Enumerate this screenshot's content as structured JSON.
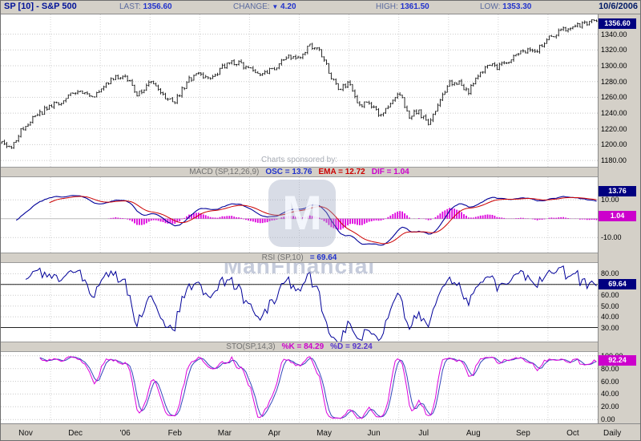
{
  "header": {
    "title": "SP [10] - S&P 500",
    "last_label": "LAST:",
    "last_value": "1356.60",
    "change_label": "CHANGE:",
    "change_value": "4.20",
    "change_direction": "down",
    "high_label": "HIGH:",
    "high_value": "1361.50",
    "low_label": "LOW:",
    "low_value": "1353.30",
    "date": "10/6/2006"
  },
  "icons": {
    "down_triangle": "▼"
  },
  "price": {
    "badge": "1356.60",
    "sponsor_text": "Charts sponsored by:"
  },
  "macd": {
    "name": "MACD (SP,12,26,9)",
    "osc_text": "OSC = 13.76",
    "ema_text": "EMA = 12.72",
    "dif_text": "DIF = 1.04",
    "badge_osc": "13.76",
    "badge_dif": "1.04"
  },
  "rsi": {
    "name": "RSI (SP,10)",
    "value_text": "= 69.64",
    "badge": "69.64"
  },
  "sto": {
    "name": "STO(SP,14,3)",
    "k_text": "%K = 84.29",
    "d_text": "%D = 92.24",
    "badge": "92.24"
  },
  "xaxis": {
    "timeframe": "Daily"
  },
  "watermark": {
    "logo_letter": "M",
    "text": "ManFinancial"
  },
  "colors": {
    "price_bars": "#111111",
    "osc_line": "#000099",
    "ema_line": "#cc0000",
    "dif_histogram": "#dd00dd",
    "rsi_line": "#000099",
    "sto_k": "#dd00dd",
    "sto_d": "#3344bb",
    "badge_navy": "#000080",
    "badge_magenta": "#cc00cc",
    "grid": "#c9c9c9"
  },
  "chart_data": [
    {
      "type": "ohlc",
      "name": "price",
      "title": "SP [10] - S&P 500",
      "timeframe": "Daily",
      "last": 1356.6,
      "change": -4.2,
      "high": 1361.5,
      "low": 1353.3,
      "date": "10/6/2006",
      "ylim": [
        1172,
        1365
      ],
      "yticks": [
        1340,
        1320,
        1300,
        1280,
        1260,
        1240,
        1220,
        1200,
        1180
      ],
      "start": 1207,
      "months": [
        {
          "label": "Nov",
          "closes": [
            1195,
            1218,
            1231,
            1240,
            1249
          ]
        },
        {
          "label": "Dec",
          "closes": [
            1255,
            1262,
            1268,
            1261,
            1268
          ]
        },
        {
          "label": "'06",
          "closes": [
            1285,
            1288,
            1262,
            1280
          ]
        },
        {
          "label": "Feb",
          "closes": [
            1262,
            1255,
            1280,
            1290
          ]
        },
        {
          "label": "Mar",
          "closes": [
            1282,
            1295,
            1305,
            1302,
            1295
          ]
        },
        {
          "label": "Apr",
          "closes": [
            1289,
            1296,
            1311,
            1310
          ]
        },
        {
          "label": "May",
          "closes": [
            1326,
            1320,
            1292,
            1268,
            1280
          ]
        },
        {
          "label": "Jun",
          "closes": [
            1250,
            1252,
            1240,
            1246,
            1270
          ]
        },
        {
          "label": "Jul",
          "closes": [
            1236,
            1242,
            1226,
            1252,
            1278
          ]
        },
        {
          "label": "Aug",
          "closes": [
            1279,
            1268,
            1290,
            1300,
            1298
          ]
        },
        {
          "label": "Sep",
          "closes": [
            1308,
            1320,
            1316,
            1336
          ]
        },
        {
          "label": "Oct",
          "closes": [
            1350,
            1356.6
          ]
        }
      ]
    },
    {
      "type": "line",
      "name": "macd",
      "params": "12,26,9",
      "osc": 13.76,
      "ema": 12.72,
      "dif": 1.04,
      "ylim": [
        -18,
        22
      ],
      "yticks": [
        10,
        -10
      ]
    },
    {
      "type": "line",
      "name": "rsi",
      "params": "10",
      "value": 69.64,
      "ylim": [
        17,
        90
      ],
      "yticks": [
        80,
        70,
        60,
        50,
        40,
        30
      ],
      "hlines": [
        70,
        30
      ]
    },
    {
      "type": "line",
      "name": "sto",
      "params": "14,3",
      "k": 84.29,
      "d": 92.24,
      "ylim": [
        -6,
        106
      ],
      "yticks": [
        100,
        80,
        60,
        40,
        20,
        0
      ]
    }
  ]
}
